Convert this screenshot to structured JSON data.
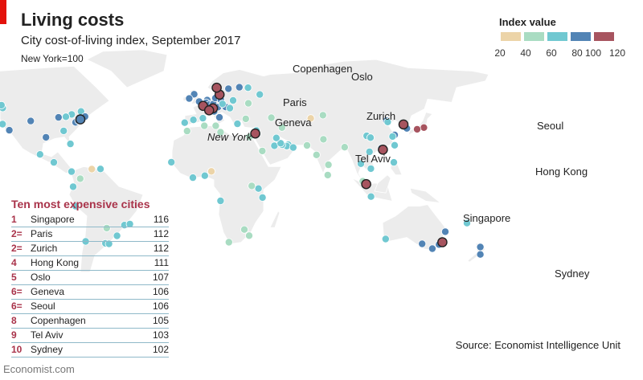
{
  "title": "Living costs",
  "subtitle": "City cost-of-living index, September 2017",
  "note": "New York=100",
  "legend": {
    "title": "Index value",
    "ticks": [
      "20",
      "40",
      "60",
      "80",
      "100",
      "120"
    ],
    "colors": [
      "#ecd4a8",
      "#a9dcc2",
      "#70c8d1",
      "#5284b5",
      "#a7545f"
    ]
  },
  "table": {
    "title": "Ten most expensive cities",
    "rows": [
      {
        "rank": "1",
        "city": "Singapore",
        "value": "116"
      },
      {
        "rank": "2=",
        "city": "Paris",
        "value": "112"
      },
      {
        "rank": "2=",
        "city": "Zurich",
        "value": "112"
      },
      {
        "rank": "4",
        "city": "Hong Kong",
        "value": "111"
      },
      {
        "rank": "5",
        "city": "Oslo",
        "value": "107"
      },
      {
        "rank": "6=",
        "city": "Geneva",
        "value": "106"
      },
      {
        "rank": "6=",
        "city": "Seoul",
        "value": "106"
      },
      {
        "rank": "8",
        "city": "Copenhagen",
        "value": "105"
      },
      {
        "rank": "9",
        "city": "Tel Aviv",
        "value": "103"
      },
      {
        "rank": "10",
        "city": "Sydney",
        "value": "102"
      }
    ]
  },
  "source": "Source: Economist Intelligence Unit",
  "footer": "Economist.com",
  "chart_data": {
    "type": "scatter",
    "title": "Living costs",
    "subtitle": "City cost-of-living index, September 2017",
    "color_scale": {
      "min": 20,
      "max": 120,
      "bins": [
        [
          20,
          40
        ],
        [
          40,
          60
        ],
        [
          60,
          80
        ],
        [
          80,
          100
        ],
        [
          100,
          120
        ]
      ]
    },
    "labeled_cities": [
      {
        "name": "New York",
        "lon": -74.0,
        "lat": 40.7,
        "value": 100
      },
      {
        "name": "Copenhagen",
        "lon": 12.6,
        "lat": 55.7,
        "value": 105
      },
      {
        "name": "Oslo",
        "lon": 10.8,
        "lat": 59.9,
        "value": 107
      },
      {
        "name": "Paris",
        "lon": 2.35,
        "lat": 48.9,
        "value": 112
      },
      {
        "name": "Zurich",
        "lon": 8.5,
        "lat": 47.4,
        "value": 112
      },
      {
        "name": "Geneva",
        "lon": 6.1,
        "lat": 46.2,
        "value": 106
      },
      {
        "name": "Tel Aviv",
        "lon": 34.8,
        "lat": 32.1,
        "value": 103
      },
      {
        "name": "Seoul",
        "lon": 127.0,
        "lat": 37.6,
        "value": 106
      },
      {
        "name": "Hong Kong",
        "lon": 114.2,
        "lat": 22.3,
        "value": 111
      },
      {
        "name": "Singapore",
        "lon": 103.8,
        "lat": 1.35,
        "value": 116
      },
      {
        "name": "Sydney",
        "lon": 151.2,
        "lat": -33.9,
        "value": 102
      }
    ],
    "other_cities": [
      {
        "lon": -122.4,
        "lat": 37.8,
        "value": 75
      },
      {
        "lon": -118.2,
        "lat": 34.1,
        "value": 82
      },
      {
        "lon": -122.3,
        "lat": 47.6,
        "value": 72
      },
      {
        "lon": -123.1,
        "lat": 49.3,
        "value": 70
      },
      {
        "lon": -104.9,
        "lat": 39.7,
        "value": 82
      },
      {
        "lon": -95.4,
        "lat": 29.8,
        "value": 80
      },
      {
        "lon": -87.6,
        "lat": 41.9,
        "value": 85
      },
      {
        "lon": -79.4,
        "lat": 43.7,
        "value": 72
      },
      {
        "lon": -73.6,
        "lat": 45.5,
        "value": 68
      },
      {
        "lon": -77.0,
        "lat": 38.9,
        "value": 85
      },
      {
        "lon": -71.1,
        "lat": 42.4,
        "value": 82
      },
      {
        "lon": -75.2,
        "lat": 39.9,
        "value": 80
      },
      {
        "lon": -84.4,
        "lat": 33.7,
        "value": 75
      },
      {
        "lon": -80.2,
        "lat": 25.8,
        "value": 72
      },
      {
        "lon": -83.0,
        "lat": 42.3,
        "value": 72
      },
      {
        "lon": -157.9,
        "lat": 21.3,
        "value": 68
      },
      {
        "lon": -99.1,
        "lat": 19.4,
        "value": 62
      },
      {
        "lon": -90.5,
        "lat": 14.6,
        "value": 62
      },
      {
        "lon": -79.5,
        "lat": 9.0,
        "value": 68
      },
      {
        "lon": -74.1,
        "lat": 4.7,
        "value": 52
      },
      {
        "lon": -66.9,
        "lat": 10.5,
        "value": 30
      },
      {
        "lon": -61.5,
        "lat": 10.6,
        "value": 65
      },
      {
        "lon": -78.5,
        "lat": -0.2,
        "value": 62
      },
      {
        "lon": -77.0,
        "lat": -12.0,
        "value": 62
      },
      {
        "lon": -70.7,
        "lat": -33.4,
        "value": 62
      },
      {
        "lon": -58.4,
        "lat": -34.6,
        "value": 65
      },
      {
        "lon": -56.2,
        "lat": -34.9,
        "value": 70
      },
      {
        "lon": -46.6,
        "lat": -23.5,
        "value": 62
      },
      {
        "lon": -43.2,
        "lat": -22.9,
        "value": 62
      },
      {
        "lon": -51.2,
        "lat": -30.0,
        "value": 62
      },
      {
        "lon": -57.6,
        "lat": -25.3,
        "value": 55
      },
      {
        "lon": -0.1,
        "lat": 51.5,
        "value": 85
      },
      {
        "lon": -3.2,
        "lat": 55.95,
        "value": 80
      },
      {
        "lon": -6.3,
        "lat": 53.35,
        "value": 90
      },
      {
        "lon": -3.7,
        "lat": 40.4,
        "value": 75
      },
      {
        "lon": -9.1,
        "lat": 38.7,
        "value": 62
      },
      {
        "lon": 2.2,
        "lat": 41.4,
        "value": 75
      },
      {
        "lon": 4.9,
        "lat": 52.4,
        "value": 88
      },
      {
        "lon": 4.35,
        "lat": 50.85,
        "value": 88
      },
      {
        "lon": 6.1,
        "lat": 49.6,
        "value": 92
      },
      {
        "lon": 8.7,
        "lat": 50.1,
        "value": 92
      },
      {
        "lon": 10.0,
        "lat": 53.6,
        "value": 90
      },
      {
        "lon": 11.6,
        "lat": 48.1,
        "value": 95
      },
      {
        "lon": 13.4,
        "lat": 52.5,
        "value": 85
      },
      {
        "lon": 16.4,
        "lat": 48.2,
        "value": 95
      },
      {
        "lon": 18.1,
        "lat": 59.3,
        "value": 95
      },
      {
        "lon": 24.9,
        "lat": 60.2,
        "value": 90
      },
      {
        "lon": 9.2,
        "lat": 45.5,
        "value": 90
      },
      {
        "lon": 12.5,
        "lat": 41.9,
        "value": 85
      },
      {
        "lon": 14.4,
        "lat": 50.1,
        "value": 65
      },
      {
        "lon": 21.0,
        "lat": 52.2,
        "value": 62
      },
      {
        "lon": 19.0,
        "lat": 47.5,
        "value": 62
      },
      {
        "lon": 23.7,
        "lat": 37.98,
        "value": 70
      },
      {
        "lon": 28.9,
        "lat": 41.0,
        "value": 55
      },
      {
        "lon": 37.6,
        "lat": 55.8,
        "value": 70
      },
      {
        "lon": 30.3,
        "lat": 59.9,
        "value": 65
      },
      {
        "lon": 30.5,
        "lat": 50.45,
        "value": 45
      },
      {
        "lon": 44.8,
        "lat": 41.7,
        "value": 50
      },
      {
        "lon": 69.3,
        "lat": 41.3,
        "value": 30
      },
      {
        "lon": 76.9,
        "lat": 43.2,
        "value": 50
      },
      {
        "lon": 46.7,
        "lat": 24.7,
        "value": 60
      },
      {
        "lon": 39.2,
        "lat": 21.5,
        "value": 55
      },
      {
        "lon": 55.3,
        "lat": 25.3,
        "value": 68
      },
      {
        "lon": 54.4,
        "lat": 24.5,
        "value": 68
      },
      {
        "lon": 51.5,
        "lat": 25.3,
        "value": 70
      },
      {
        "lon": 50.6,
        "lat": 26.2,
        "value": 62
      },
      {
        "lon": 58.4,
        "lat": 23.6,
        "value": 60
      },
      {
        "lon": 47.9,
        "lat": 29.4,
        "value": 60
      },
      {
        "lon": 35.9,
        "lat": 31.9,
        "value": 65
      },
      {
        "lon": 35.5,
        "lat": 33.9,
        "value": 68
      },
      {
        "lon": 31.2,
        "lat": 30.0,
        "value": 45
      },
      {
        "lon": 51.4,
        "lat": 35.7,
        "value": 45
      },
      {
        "lon": 67.0,
        "lat": 24.9,
        "value": 40
      },
      {
        "lon": 77.2,
        "lat": 28.6,
        "value": 45
      },
      {
        "lon": 72.9,
        "lat": 19.1,
        "value": 50
      },
      {
        "lon": 80.3,
        "lat": 13.1,
        "value": 45
      },
      {
        "lon": 79.9,
        "lat": 6.9,
        "value": 50
      },
      {
        "lon": 90.4,
        "lat": 23.8,
        "value": 50
      },
      {
        "lon": 100.5,
        "lat": 13.75,
        "value": 70
      },
      {
        "lon": 106.7,
        "lat": 10.8,
        "value": 60
      },
      {
        "lon": 105.85,
        "lat": 21.0,
        "value": 60
      },
      {
        "lon": 101.7,
        "lat": 3.1,
        "value": 55
      },
      {
        "lon": 106.8,
        "lat": -6.2,
        "value": 68
      },
      {
        "lon": 121.0,
        "lat": 14.6,
        "value": 65
      },
      {
        "lon": 116.4,
        "lat": 39.9,
        "value": 82
      },
      {
        "lon": 121.5,
        "lat": 31.2,
        "value": 88
      },
      {
        "lon": 113.3,
        "lat": 23.1,
        "value": 82
      },
      {
        "lon": 114.1,
        "lat": 22.55,
        "value": 80
      },
      {
        "lon": 117.2,
        "lat": 39.1,
        "value": 75
      },
      {
        "lon": 104.1,
        "lat": 30.7,
        "value": 70
      },
      {
        "lon": 106.5,
        "lat": 29.6,
        "value": 72
      },
      {
        "lon": 120.2,
        "lat": 30.3,
        "value": 70
      },
      {
        "lon": 121.5,
        "lat": 25.0,
        "value": 75
      },
      {
        "lon": 129.1,
        "lat": 35.2,
        "value": 98
      },
      {
        "lon": 139.7,
        "lat": 35.7,
        "value": 104
      },
      {
        "lon": 135.5,
        "lat": 34.7,
        "value": 104
      },
      {
        "lon": 18.4,
        "lat": -33.9,
        "value": 55
      },
      {
        "lon": 28.0,
        "lat": -26.2,
        "value": 55
      },
      {
        "lon": 31.0,
        "lat": -29.9,
        "value": 55
      },
      {
        "lon": 36.8,
        "lat": -1.3,
        "value": 62
      },
      {
        "lon": 39.3,
        "lat": -6.8,
        "value": 62
      },
      {
        "lon": 32.6,
        "lat": 0.3,
        "value": 55
      },
      {
        "lon": 3.4,
        "lat": 6.5,
        "value": 75
      },
      {
        "lon": -17.4,
        "lat": 14.7,
        "value": 62
      },
      {
        "lon": -4.0,
        "lat": 5.3,
        "value": 65
      },
      {
        "lon": 7.5,
        "lat": 9.1,
        "value": 35
      },
      {
        "lon": 13.2,
        "lat": -8.8,
        "value": 68
      },
      {
        "lon": -7.6,
        "lat": 33.6,
        "value": 52
      },
      {
        "lon": 3.1,
        "lat": 36.8,
        "value": 52
      },
      {
        "lon": 10.2,
        "lat": 36.8,
        "value": 45
      },
      {
        "lon": 13.2,
        "lat": 32.9,
        "value": 50
      },
      {
        "lon": 115.9,
        "lat": -31.95,
        "value": 75
      },
      {
        "lon": 144.96,
        "lat": -37.8,
        "value": 92
      },
      {
        "lon": 138.6,
        "lat": -34.9,
        "value": 88
      },
      {
        "lon": 153.0,
        "lat": -27.5,
        "value": 92
      },
      {
        "lon": 149.1,
        "lat": -35.3,
        "value": 90
      },
      {
        "lon": 174.8,
        "lat": -36.85,
        "value": 90
      },
      {
        "lon": 174.8,
        "lat": -41.3,
        "value": 88
      },
      {
        "lon": 166.5,
        "lat": -22.3,
        "value": 68
      }
    ]
  }
}
